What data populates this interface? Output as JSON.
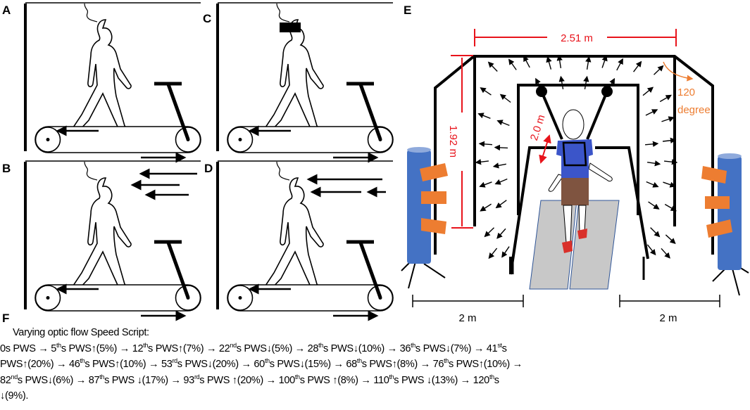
{
  "panels": {
    "a": "A",
    "b": "B",
    "c": "C",
    "d": "D",
    "e": "E",
    "f": "F"
  },
  "setup": {
    "width_label": "2.51 m",
    "height_label": "1.92 m",
    "distance_label": "2.0 m",
    "angle_label_1": "120",
    "angle_label_2": "degree",
    "left_spacing_label": "2 m",
    "right_spacing_label": "2 m",
    "colors": {
      "dimension": "#e8131b",
      "angle": "#ed7d31",
      "projector_column": "#4472c4",
      "projector": "#ed7d31",
      "treadmill_mat": "#c8c8c8",
      "shirt": "#3b55c9",
      "shorts": "#7f5440",
      "shoes": "#d9302a"
    }
  },
  "speed_script": {
    "title": "Varying optic flow Speed Script:",
    "lines": [
      [
        [
          "0s PWS → 5",
          ""
        ],
        [
          "th",
          1
        ],
        [
          "s PWS↑(5%) → 12",
          ""
        ],
        [
          "th",
          1
        ],
        [
          "s PWS↑(7%) → 22",
          ""
        ],
        [
          "nd",
          1
        ],
        [
          "s PWS↓(5%) → 28",
          ""
        ],
        [
          "th",
          1
        ],
        [
          "s PWS↓(10%) → 36",
          ""
        ],
        [
          "th",
          1
        ],
        [
          "s PWS↓(7%) → 41",
          ""
        ],
        [
          "st",
          1
        ],
        [
          "s",
          ""
        ]
      ],
      [
        [
          "PWS↑(20%) → 46",
          ""
        ],
        [
          "th",
          1
        ],
        [
          "s PWS↑(10%) → 53",
          ""
        ],
        [
          "rd",
          1
        ],
        [
          "s PWS↓(20%)  → 60",
          ""
        ],
        [
          "th",
          1
        ],
        [
          "s PWS↓(15%) → 68",
          ""
        ],
        [
          "th",
          1
        ],
        [
          "s PWS↑(8%) → 76",
          ""
        ],
        [
          "th",
          1
        ],
        [
          "s PWS↑(10%) →",
          ""
        ]
      ],
      [
        [
          "82",
          ""
        ],
        [
          "nd",
          1
        ],
        [
          "s PWS↓(6%) →  87",
          ""
        ],
        [
          "th",
          1
        ],
        [
          "s PWS ↓(17%) → 93",
          ""
        ],
        [
          "rd",
          1
        ],
        [
          "s PWS ↑(20%) → 100",
          ""
        ],
        [
          "th",
          1
        ],
        [
          "s PWS ↑(8%) →  110",
          ""
        ],
        [
          "th",
          1
        ],
        [
          "s PWS ↓(13%) → 120",
          ""
        ],
        [
          "th",
          1
        ],
        [
          "s",
          ""
        ]
      ],
      [
        [
          "↓(9%).",
          ""
        ]
      ]
    ]
  }
}
